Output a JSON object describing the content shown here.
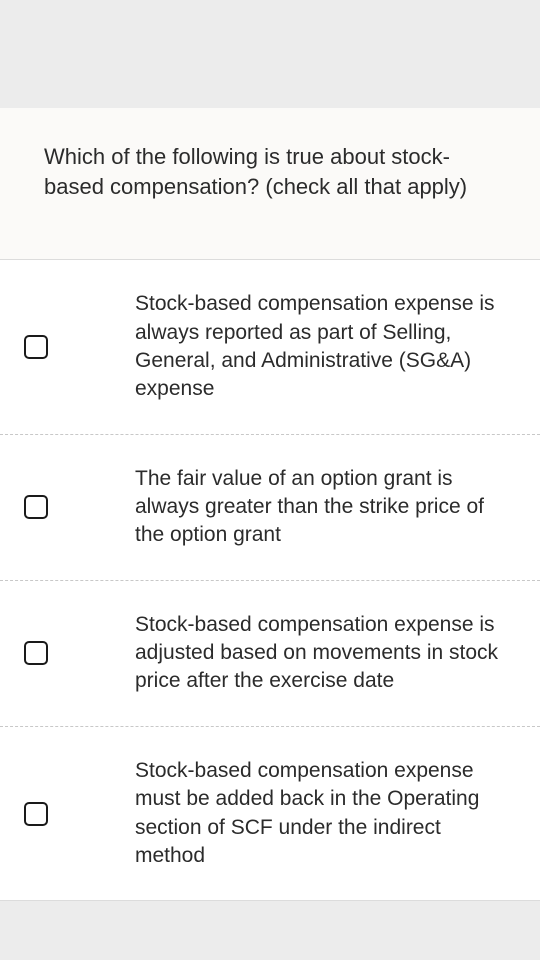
{
  "question": {
    "prompt": "Which of the following is true about stock-based compensation? (check all that apply)"
  },
  "options": [
    {
      "label": "Stock-based compensation expense is always reported as part of Selling, General, and Administrative (SG&A) expense",
      "checked": false
    },
    {
      "label": "The fair value of an option grant is always greater than the strike price of the option grant",
      "checked": false
    },
    {
      "label": "Stock-based compensation expense is adjusted based on movements in stock price after the exercise date",
      "checked": false
    },
    {
      "label": "Stock-based compensation expense must be added back in the Operating section of SCF under the indirect method",
      "checked": false
    }
  ],
  "colors": {
    "page_background": "#ececec",
    "question_background": "#fbfaf8",
    "options_background": "#ffffff",
    "text_color": "#2b2b2b",
    "border_color": "#dcdcdc",
    "divider_color": "#c8c8c8",
    "checkbox_border": "#1a1a1a"
  }
}
